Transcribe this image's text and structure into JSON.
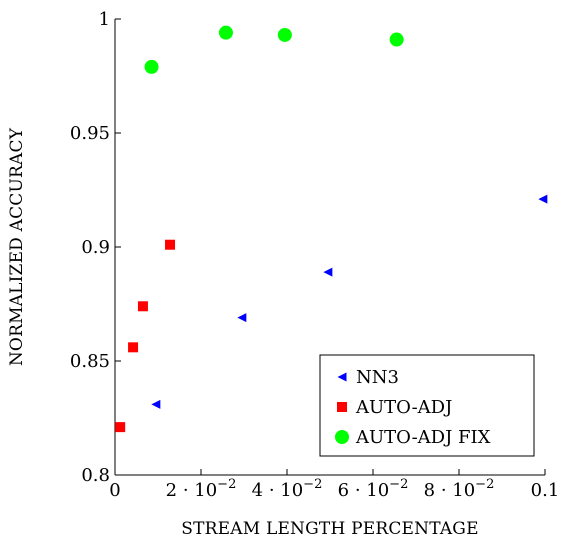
{
  "chart_data": {
    "type": "scatter",
    "title": "",
    "xlabel": "STREAM LENGTH PERCENTAGE",
    "ylabel": "NORMALIZED ACCURACY",
    "xlim": [
      0,
      0.1
    ],
    "ylim": [
      0.8,
      1.0
    ],
    "x_ticks": [
      {
        "value": 0,
        "mant": "0",
        "exp": ""
      },
      {
        "value": 0.02,
        "mant": "2 · 10",
        "exp": "−2"
      },
      {
        "value": 0.04,
        "mant": "4 · 10",
        "exp": "−2"
      },
      {
        "value": 0.06,
        "mant": "6 · 10",
        "exp": "−2"
      },
      {
        "value": 0.08,
        "mant": "8 · 10",
        "exp": "−2"
      },
      {
        "value": 0.1,
        "mant": "0.1",
        "exp": ""
      }
    ],
    "y_ticks": [
      {
        "value": 0.8,
        "label": "0.8"
      },
      {
        "value": 0.85,
        "label": "0.85"
      },
      {
        "value": 0.9,
        "label": "0.9"
      },
      {
        "value": 0.95,
        "label": "0.95"
      },
      {
        "value": 1.0,
        "label": "1"
      }
    ],
    "grid": false,
    "legend_position": "bottom-right",
    "series": [
      {
        "name": "NN3",
        "marker": "triangle-left",
        "color": "#0000ff",
        "points": [
          {
            "x": 0.0095,
            "y": 0.831
          },
          {
            "x": 0.0295,
            "y": 0.869
          },
          {
            "x": 0.0495,
            "y": 0.889
          },
          {
            "x": 0.0995,
            "y": 0.921
          }
        ]
      },
      {
        "name": "AUTO-ADJ",
        "marker": "square",
        "color": "#ff0000",
        "points": [
          {
            "x": 0.0012,
            "y": 0.821
          },
          {
            "x": 0.0042,
            "y": 0.856
          },
          {
            "x": 0.0065,
            "y": 0.874
          },
          {
            "x": 0.0128,
            "y": 0.901
          }
        ]
      },
      {
        "name": "AUTO-ADJ FIX",
        "marker": "circle",
        "color": "#00ff00",
        "points": [
          {
            "x": 0.0085,
            "y": 0.979
          },
          {
            "x": 0.0258,
            "y": 0.994
          },
          {
            "x": 0.0395,
            "y": 0.993
          },
          {
            "x": 0.0655,
            "y": 0.991
          }
        ]
      }
    ]
  }
}
